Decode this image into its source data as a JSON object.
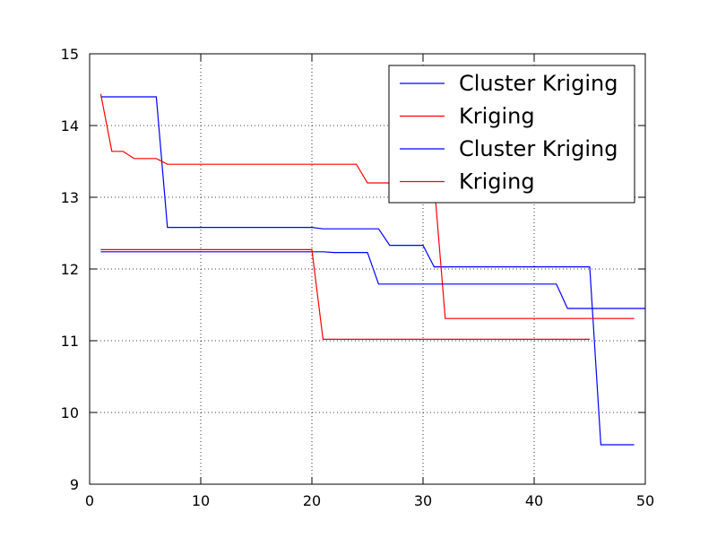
{
  "chart_data": {
    "type": "line",
    "xlim": [
      0,
      50
    ],
    "ylim": [
      9,
      15
    ],
    "xticks": [
      0,
      10,
      20,
      30,
      40,
      50
    ],
    "yticks": [
      9,
      10,
      11,
      12,
      13,
      14,
      15
    ],
    "grid": true,
    "legend_position": "top-right",
    "series": [
      {
        "name": "Cluster Kriging",
        "color": "#0000ff",
        "points": [
          [
            1,
            14.4
          ],
          [
            6,
            14.4
          ],
          [
            7,
            12.58
          ],
          [
            20,
            12.58
          ],
          [
            21,
            12.56
          ],
          [
            26,
            12.56
          ],
          [
            27,
            12.33
          ],
          [
            30,
            12.33
          ],
          [
            31,
            12.03
          ],
          [
            45,
            12.03
          ],
          [
            46,
            9.55
          ],
          [
            49,
            9.55
          ]
        ]
      },
      {
        "name": "Kriging",
        "color": "#ff0000",
        "points": [
          [
            1,
            14.44
          ],
          [
            2,
            13.64
          ],
          [
            3,
            13.64
          ],
          [
            4,
            13.54
          ],
          [
            6,
            13.54
          ],
          [
            7,
            13.46
          ],
          [
            24,
            13.46
          ],
          [
            25,
            13.2
          ],
          [
            27,
            13.2
          ],
          [
            31,
            13.2
          ],
          [
            32,
            11.31
          ],
          [
            49,
            11.31
          ]
        ]
      },
      {
        "name": "Cluster Kriging",
        "color": "#0000ff",
        "points": [
          [
            1,
            12.24
          ],
          [
            20,
            12.24
          ],
          [
            21,
            12.24
          ],
          [
            22,
            12.23
          ],
          [
            25,
            12.23
          ],
          [
            26,
            11.79
          ],
          [
            42,
            11.79
          ],
          [
            43,
            11.45
          ],
          [
            50,
            11.45
          ]
        ]
      },
      {
        "name": "Kriging",
        "color": "#ff0000",
        "points": [
          [
            1,
            12.27
          ],
          [
            20,
            12.27
          ],
          [
            21,
            11.02
          ],
          [
            45,
            11.02
          ]
        ]
      }
    ]
  }
}
